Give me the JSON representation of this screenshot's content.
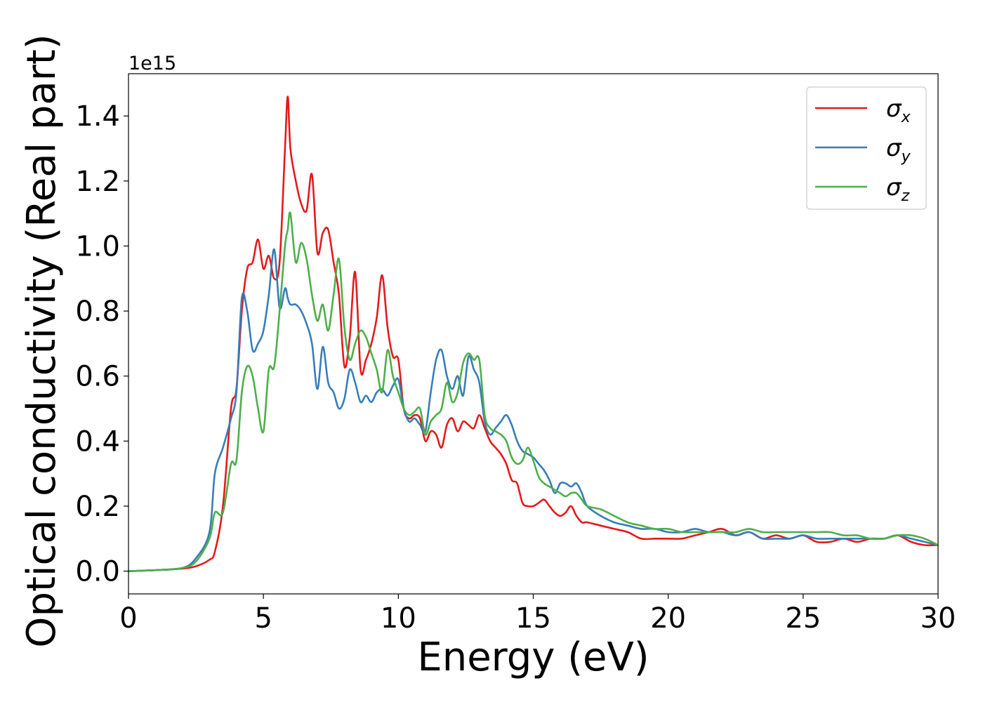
{
  "chart_data": {
    "type": "line",
    "title": "",
    "xlabel": "Energy (eV)",
    "ylabel": "Optical conductivity (Real part)",
    "y_offset_label": "1e15",
    "xlim": [
      0,
      30
    ],
    "ylim": [
      -0.07,
      1.53
    ],
    "x_ticks": [
      0,
      5,
      10,
      15,
      20,
      25,
      30
    ],
    "x_tick_labels": [
      "0",
      "5",
      "10",
      "15",
      "20",
      "25",
      "30"
    ],
    "y_ticks": [
      0.0,
      0.2,
      0.4,
      0.6,
      0.8,
      1.0,
      1.2,
      1.4
    ],
    "y_tick_labels": [
      "0.0",
      "0.2",
      "0.4",
      "0.6",
      "0.8",
      "1.0",
      "1.2",
      "1.4"
    ],
    "grid": false,
    "legend_position": "top-right",
    "x": [
      0,
      1,
      2,
      2.5,
      3,
      3.2,
      3.5,
      3.8,
      4,
      4.2,
      4.4,
      4.6,
      4.8,
      5,
      5.2,
      5.4,
      5.6,
      5.8,
      5.9,
      6,
      6.2,
      6.4,
      6.6,
      6.8,
      7,
      7.2,
      7.4,
      7.6,
      7.8,
      8,
      8.2,
      8.4,
      8.6,
      8.8,
      9,
      9.2,
      9.4,
      9.6,
      9.8,
      10,
      10.2,
      10.4,
      10.6,
      10.8,
      11,
      11.2,
      11.4,
      11.6,
      11.8,
      12,
      12.2,
      12.4,
      12.6,
      12.8,
      13,
      13.2,
      13.4,
      13.6,
      13.8,
      14,
      14.2,
      14.4,
      14.6,
      14.8,
      15,
      15.2,
      15.4,
      15.6,
      15.8,
      16,
      16.2,
      16.4,
      16.6,
      16.8,
      17,
      17.5,
      18,
      18.5,
      19,
      19.5,
      20,
      20.5,
      21,
      21.5,
      22,
      22.5,
      23,
      23.5,
      24,
      24.5,
      25,
      25.5,
      26,
      26.5,
      27,
      27.5,
      28,
      28.5,
      29,
      29.5,
      30
    ],
    "series": [
      {
        "name": "σx",
        "symbol": "σ",
        "subscript": "x",
        "color": "#e41a1c",
        "values": [
          0,
          0.003,
          0.008,
          0.015,
          0.035,
          0.06,
          0.2,
          0.5,
          0.56,
          0.8,
          0.93,
          0.95,
          1.02,
          0.93,
          0.97,
          0.9,
          0.95,
          1.3,
          1.46,
          1.3,
          1.2,
          1.13,
          1.11,
          1.22,
          0.98,
          1.04,
          1.05,
          0.95,
          0.85,
          0.63,
          0.72,
          0.92,
          0.62,
          0.65,
          0.7,
          0.78,
          0.91,
          0.75,
          0.66,
          0.65,
          0.5,
          0.47,
          0.48,
          0.47,
          0.4,
          0.43,
          0.42,
          0.38,
          0.45,
          0.47,
          0.43,
          0.46,
          0.45,
          0.44,
          0.48,
          0.44,
          0.4,
          0.38,
          0.36,
          0.33,
          0.28,
          0.27,
          0.21,
          0.2,
          0.2,
          0.21,
          0.22,
          0.2,
          0.18,
          0.17,
          0.18,
          0.2,
          0.17,
          0.15,
          0.15,
          0.14,
          0.13,
          0.12,
          0.1,
          0.1,
          0.1,
          0.1,
          0.11,
          0.12,
          0.13,
          0.11,
          0.12,
          0.1,
          0.11,
          0.1,
          0.11,
          0.09,
          0.09,
          0.1,
          0.09,
          0.1,
          0.1,
          0.11,
          0.09,
          0.08,
          0.08
        ]
      },
      {
        "name": "σy",
        "symbol": "σ",
        "subscript": "y",
        "color": "#377eb8",
        "values": [
          0,
          0.003,
          0.01,
          0.04,
          0.12,
          0.3,
          0.38,
          0.47,
          0.55,
          0.84,
          0.8,
          0.68,
          0.7,
          0.74,
          0.85,
          0.99,
          0.81,
          0.87,
          0.84,
          0.82,
          0.82,
          0.8,
          0.76,
          0.7,
          0.56,
          0.69,
          0.58,
          0.55,
          0.5,
          0.53,
          0.62,
          0.58,
          0.52,
          0.54,
          0.52,
          0.55,
          0.56,
          0.54,
          0.57,
          0.59,
          0.5,
          0.46,
          0.47,
          0.45,
          0.43,
          0.55,
          0.65,
          0.68,
          0.6,
          0.56,
          0.6,
          0.54,
          0.66,
          0.62,
          0.58,
          0.46,
          0.42,
          0.44,
          0.46,
          0.48,
          0.45,
          0.4,
          0.37,
          0.36,
          0.35,
          0.33,
          0.31,
          0.28,
          0.24,
          0.27,
          0.27,
          0.26,
          0.27,
          0.24,
          0.2,
          0.17,
          0.15,
          0.14,
          0.13,
          0.13,
          0.12,
          0.12,
          0.13,
          0.12,
          0.12,
          0.11,
          0.12,
          0.1,
          0.1,
          0.1,
          0.11,
          0.1,
          0.1,
          0.1,
          0.1,
          0.1,
          0.1,
          0.11,
          0.1,
          0.09,
          0.08
        ]
      },
      {
        "name": "σz",
        "symbol": "σ",
        "subscript": "z",
        "color": "#4daf4a",
        "values": [
          0,
          0.003,
          0.01,
          0.03,
          0.1,
          0.18,
          0.18,
          0.33,
          0.34,
          0.55,
          0.63,
          0.6,
          0.5,
          0.43,
          0.62,
          0.63,
          0.8,
          1.0,
          1.05,
          1.1,
          0.95,
          1.01,
          0.96,
          0.85,
          0.77,
          0.82,
          0.74,
          0.85,
          0.96,
          0.75,
          0.65,
          0.7,
          0.74,
          0.72,
          0.67,
          0.62,
          0.55,
          0.68,
          0.6,
          0.55,
          0.5,
          0.48,
          0.49,
          0.5,
          0.42,
          0.46,
          0.48,
          0.5,
          0.58,
          0.52,
          0.55,
          0.64,
          0.67,
          0.65,
          0.65,
          0.48,
          0.44,
          0.43,
          0.42,
          0.4,
          0.35,
          0.33,
          0.34,
          0.38,
          0.34,
          0.29,
          0.27,
          0.26,
          0.25,
          0.24,
          0.23,
          0.24,
          0.24,
          0.22,
          0.2,
          0.19,
          0.17,
          0.15,
          0.14,
          0.13,
          0.13,
          0.12,
          0.12,
          0.12,
          0.12,
          0.12,
          0.13,
          0.12,
          0.12,
          0.12,
          0.12,
          0.12,
          0.12,
          0.11,
          0.11,
          0.1,
          0.1,
          0.11,
          0.11,
          0.1,
          0.08
        ]
      }
    ]
  }
}
